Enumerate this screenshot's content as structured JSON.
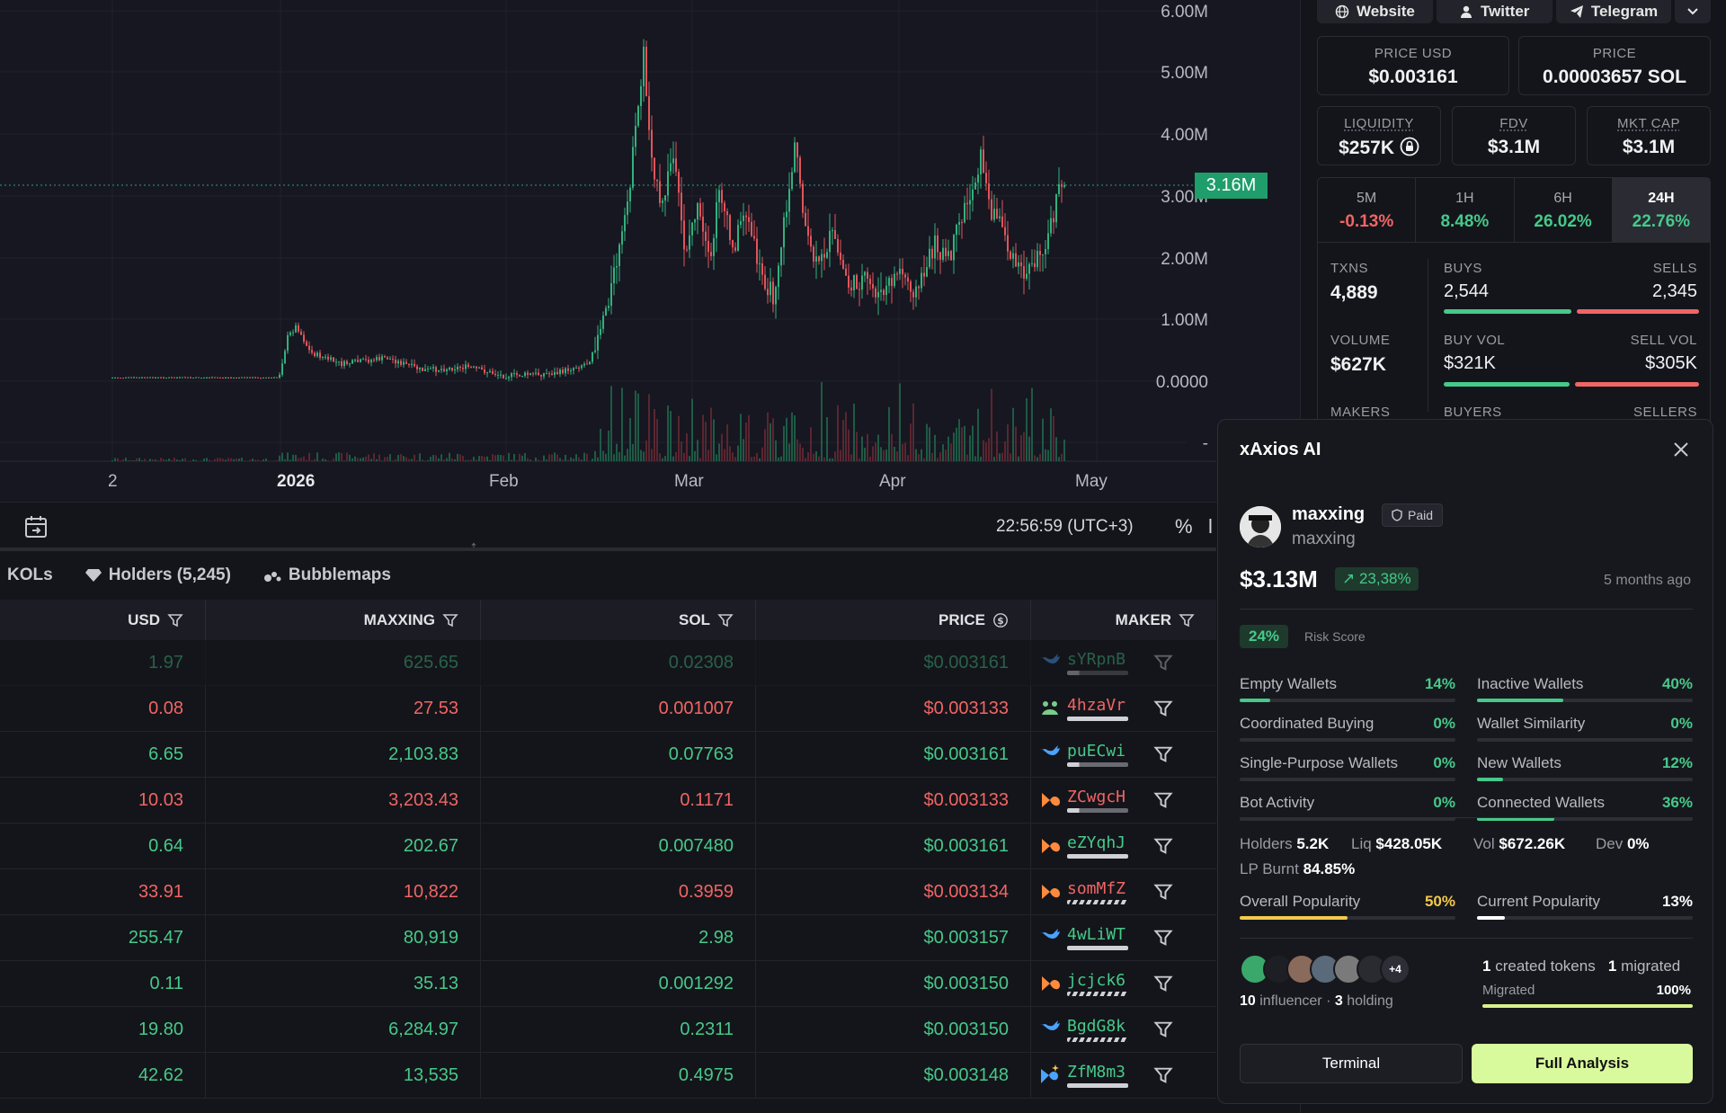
{
  "chart": {
    "price_axis": [
      "6.00M",
      "5.00M",
      "4.00M",
      "3.00M",
      "2.00M",
      "1.00M",
      "0.0000",
      "-"
    ],
    "current_price_label": "3.16M",
    "time_axis": [
      "2",
      "2026",
      "Feb",
      "Mar",
      "Apr",
      "May"
    ],
    "clock": "22:56:59 (UTC+3)",
    "percent_toggle": "%",
    "log_toggle": "l"
  },
  "tabs": {
    "kols": "KOLs",
    "holders": "Holders (5,245)",
    "bubblemaps": "Bubblemaps"
  },
  "table": {
    "headers": {
      "usd": "USD",
      "token": "MAXXING",
      "sol": "SOL",
      "price": "PRICE",
      "maker": "MAKER"
    },
    "rows": [
      {
        "usd": "1.97",
        "token": "625.65",
        "sol": "0.02308",
        "price": "$0.003161",
        "maker": "sYRpnB",
        "side": "buy",
        "icon": "whale-icon",
        "faded": true
      },
      {
        "usd": "0.08",
        "token": "27.53",
        "sol": "0.001007",
        "price": "$0.003133",
        "maker": "4hzaVr",
        "side": "sell",
        "icon": "frog-icon"
      },
      {
        "usd": "6.65",
        "token": "2,103.83",
        "sol": "0.07763",
        "price": "$0.003161",
        "maker": "puECwi",
        "side": "buy",
        "icon": "whale-icon"
      },
      {
        "usd": "10.03",
        "token": "3,203.43",
        "sol": "0.1171",
        "price": "$0.003133",
        "maker": "ZCwgcH",
        "side": "sell",
        "icon": "fish-icon"
      },
      {
        "usd": "0.64",
        "token": "202.67",
        "sol": "0.007480",
        "price": "$0.003161",
        "maker": "eZYqhJ",
        "side": "buy",
        "icon": "fish-icon"
      },
      {
        "usd": "33.91",
        "token": "10,822",
        "sol": "0.3959",
        "price": "$0.003134",
        "maker": "somMfZ",
        "side": "sell",
        "icon": "fish-icon"
      },
      {
        "usd": "255.47",
        "token": "80,919",
        "sol": "2.98",
        "price": "$0.003157",
        "maker": "4wLiWT",
        "side": "buy",
        "icon": "whale-icon"
      },
      {
        "usd": "0.11",
        "token": "35.13",
        "sol": "0.001292",
        "price": "$0.003150",
        "maker": "jcjck6",
        "side": "buy",
        "icon": "fish-icon"
      },
      {
        "usd": "19.80",
        "token": "6,284.97",
        "sol": "0.2311",
        "price": "$0.003150",
        "maker": "BgdG8k",
        "side": "buy",
        "icon": "whale-icon"
      },
      {
        "usd": "42.62",
        "token": "13,535",
        "sol": "0.4975",
        "price": "$0.003148",
        "maker": "ZfM8m3",
        "side": "buy",
        "icon": "sparkle-fish-icon"
      }
    ]
  },
  "token_info": {
    "links": [
      "Website",
      "Twitter",
      "Telegram"
    ],
    "price_usd_label": "PRICE USD",
    "price_usd": "$0.003161",
    "price_sol_label": "PRICE",
    "price_sol": "0.00003657 SOL",
    "liquidity_label": "LIQUIDITY",
    "liquidity": "$257K",
    "fdv_label": "FDV",
    "fdv": "$3.1M",
    "mktcap_label": "MKT CAP",
    "mktcap": "$3.1M",
    "timeframes": [
      {
        "label": "5M",
        "value": "-0.13%",
        "dir": "down"
      },
      {
        "label": "1H",
        "value": "8.48%",
        "dir": "up"
      },
      {
        "label": "6H",
        "value": "26.02%",
        "dir": "up"
      },
      {
        "label": "24H",
        "value": "22.76%",
        "dir": "up",
        "active": true
      }
    ],
    "txns_label": "TXNS",
    "txns": "4,889",
    "buys_label": "BUYS",
    "buys": "2,544",
    "sells_label": "SELLS",
    "sells": "2,345",
    "volume_label": "VOLUME",
    "volume": "$627K",
    "buy_vol_label": "BUY VOL",
    "buy_vol": "$321K",
    "sell_vol_label": "SELL VOL",
    "sell_vol": "$305K",
    "makers_label": "MAKERS",
    "buyers_label": "BUYERS",
    "sellers_label": "SELLERS"
  },
  "ai": {
    "title": "xAxios AI",
    "name": "maxxing",
    "paid": "Paid",
    "handle": "maxxing",
    "market_cap": "$3.13M",
    "change": "↗ 23,38%",
    "age": "5 months ago",
    "risk_score": "24%",
    "risk_label": "Risk Score",
    "metrics": [
      {
        "label": "Empty Wallets",
        "value": "14%",
        "fill": 0.14
      },
      {
        "label": "Inactive Wallets",
        "value": "40%",
        "fill": 0.4
      },
      {
        "label": "Coordinated Buying",
        "value": "0%",
        "fill": 0
      },
      {
        "label": "Wallet Similarity",
        "value": "0%",
        "fill": 0
      },
      {
        "label": "Single-Purpose Wallets",
        "value": "0%",
        "fill": 0
      },
      {
        "label": "New Wallets",
        "value": "12%",
        "fill": 0.12
      },
      {
        "label": "Bot Activity",
        "value": "0%",
        "fill": 0
      },
      {
        "label": "Connected Wallets",
        "value": "36%",
        "fill": 0.36
      }
    ],
    "holders_label": "Holders",
    "holders": "5.2K",
    "liq_label": "Liq",
    "liq": "$428.05K",
    "vol_label": "Vol",
    "vol": "$672.26K",
    "dev_label": "Dev",
    "dev": "0%",
    "lp_label": "LP Burnt",
    "lp": "84.85%",
    "overall_pop_label": "Overall Popularity",
    "overall_pop": "50%",
    "overall_pop_fill": 0.5,
    "current_pop_label": "Current Popularity",
    "current_pop": "13%",
    "current_pop_fill": 0.13,
    "more_avatars": "+4",
    "influencer_count": "10",
    "influencer_label": "influencer ·",
    "holding_count": "3",
    "holding_label": "holding",
    "created_count": "1",
    "created_label": "created tokens",
    "migrated_count": "1",
    "migrated_label": "migrated",
    "migrated_bar_label": "Migrated",
    "migrated_pct": "100%",
    "terminal_btn": "Terminal",
    "full_btn": "Full Analysis",
    "colors": {
      "accent": "#d9f99d",
      "buy": "#46c98a",
      "sell": "#f06565"
    }
  }
}
